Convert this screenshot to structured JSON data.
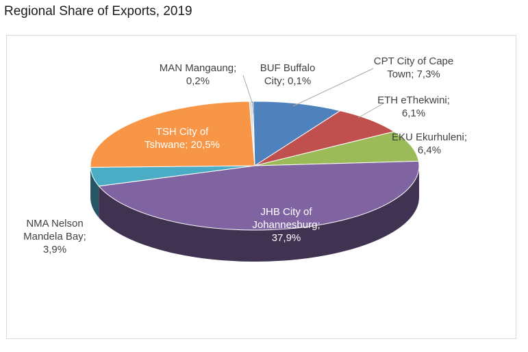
{
  "title": "Regional Share of Exports, 2019",
  "chart_data": {
    "type": "pie",
    "three_d": true,
    "title": "",
    "slices": [
      {
        "code": "BUF",
        "label_lines": [
          "BUF Buffalo",
          "City; 0,1%"
        ],
        "value": 0.1,
        "color": "#1f3864"
      },
      {
        "code": "CPT",
        "label_lines": [
          "CPT City of Cape",
          "Town; 7,3%"
        ],
        "value": 7.3,
        "color": "#4f81bd"
      },
      {
        "code": "ETH",
        "label_lines": [
          "ETH eThekwini;",
          "6,1%"
        ],
        "value": 6.1,
        "color": "#c0504d"
      },
      {
        "code": "EKU",
        "label_lines": [
          "EKU Ekurhuleni;",
          "6,4%"
        ],
        "value": 6.4,
        "color": "#9bbb59"
      },
      {
        "code": "JHB",
        "label_lines": [
          "JHB City of",
          "Johannesburg;",
          "37,9%"
        ],
        "value": 37.9,
        "color": "#8064a2"
      },
      {
        "code": "NMA",
        "label_lines": [
          "NMA Nelson",
          "Mandela Bay;",
          "3,9%"
        ],
        "value": 3.9,
        "color": "#4bacc6"
      },
      {
        "code": "TSH",
        "label_lines": [
          "TSH City of",
          "Tshwane; 20,5%"
        ],
        "value": 20.5,
        "color": "#f79646"
      },
      {
        "code": "MAN",
        "label_lines": [
          "MAN Mangaung;",
          "0,2%"
        ],
        "value": 0.2,
        "color": "#d9d9d9"
      }
    ]
  }
}
